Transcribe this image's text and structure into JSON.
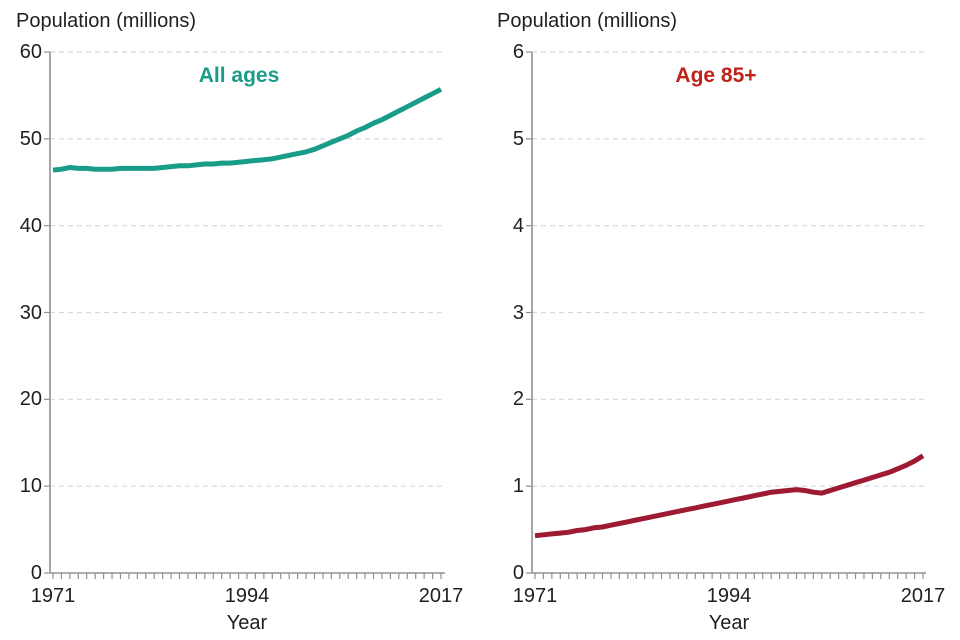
{
  "style": {
    "background": "#ffffff",
    "text_color": "#1f1f1f",
    "axis_color": "#909090",
    "grid_color": "#d8d8d8"
  },
  "chart_data": [
    {
      "type": "line",
      "title": "Population (millions)",
      "xlabel": "Year",
      "ylabel": "Population (millions)",
      "annotation": {
        "text": "All ages",
        "color": "#199D89",
        "position": "top-center"
      },
      "ylim": [
        0,
        60
      ],
      "yticks": [
        0,
        10,
        20,
        30,
        40,
        50,
        60
      ],
      "xticks": [
        1971,
        1994,
        2017
      ],
      "grid": "horizontal-dashed",
      "legend": "none",
      "x": [
        1971,
        1972,
        1973,
        1974,
        1975,
        1976,
        1977,
        1978,
        1979,
        1980,
        1981,
        1982,
        1983,
        1984,
        1985,
        1986,
        1987,
        1988,
        1989,
        1990,
        1991,
        1992,
        1993,
        1994,
        1995,
        1996,
        1997,
        1998,
        1999,
        2000,
        2001,
        2002,
        2003,
        2004,
        2005,
        2006,
        2007,
        2008,
        2009,
        2010,
        2011,
        2012,
        2013,
        2014,
        2015,
        2016,
        2017
      ],
      "series": [
        {
          "name": "All ages",
          "color": "#199D89",
          "values": [
            46.4,
            46.5,
            46.7,
            46.6,
            46.6,
            46.5,
            46.5,
            46.5,
            46.6,
            46.6,
            46.6,
            46.6,
            46.6,
            46.7,
            46.8,
            46.9,
            46.9,
            47.0,
            47.1,
            47.1,
            47.2,
            47.2,
            47.3,
            47.4,
            47.5,
            47.6,
            47.7,
            47.9,
            48.1,
            48.3,
            48.5,
            48.8,
            49.2,
            49.6,
            50.0,
            50.4,
            50.9,
            51.3,
            51.8,
            52.2,
            52.7,
            53.2,
            53.7,
            54.2,
            54.7,
            55.2,
            55.7
          ]
        }
      ]
    },
    {
      "type": "line",
      "title": "Population (millions)",
      "xlabel": "Year",
      "ylabel": "Population (millions)",
      "annotation": {
        "text": "Age 85+",
        "color": "#BE231B",
        "position": "top-center"
      },
      "ylim": [
        0,
        6
      ],
      "yticks": [
        0,
        1,
        2,
        3,
        4,
        5,
        6
      ],
      "xticks": [
        1971,
        1994,
        2017
      ],
      "grid": "horizontal-dashed",
      "legend": "none",
      "x": [
        1971,
        1972,
        1973,
        1974,
        1975,
        1976,
        1977,
        1978,
        1979,
        1980,
        1981,
        1982,
        1983,
        1984,
        1985,
        1986,
        1987,
        1988,
        1989,
        1990,
        1991,
        1992,
        1993,
        1994,
        1995,
        1996,
        1997,
        1998,
        1999,
        2000,
        2001,
        2002,
        2003,
        2004,
        2005,
        2006,
        2007,
        2008,
        2009,
        2010,
        2011,
        2012,
        2013,
        2014,
        2015,
        2016,
        2017
      ],
      "series": [
        {
          "name": "Age 85+",
          "color": "#9E1A32",
          "values": [
            0.43,
            0.44,
            0.45,
            0.46,
            0.47,
            0.49,
            0.5,
            0.52,
            0.53,
            0.55,
            0.57,
            0.59,
            0.61,
            0.63,
            0.65,
            0.67,
            0.69,
            0.71,
            0.73,
            0.75,
            0.77,
            0.79,
            0.81,
            0.83,
            0.85,
            0.87,
            0.89,
            0.91,
            0.93,
            0.94,
            0.95,
            0.96,
            0.95,
            0.93,
            0.92,
            0.95,
            0.98,
            1.01,
            1.04,
            1.07,
            1.1,
            1.13,
            1.16,
            1.2,
            1.24,
            1.29,
            1.35
          ]
        }
      ]
    }
  ]
}
